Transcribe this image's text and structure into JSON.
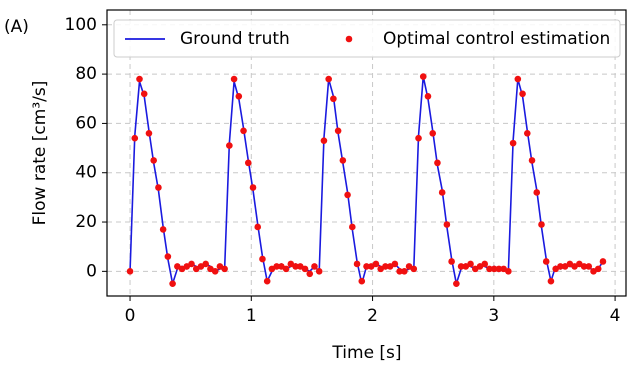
{
  "chart_data": {
    "type": "line",
    "panel_label": "(A)",
    "x_label": "Time [s]",
    "y_label": "Flow rate [cm³/s]",
    "xlim": [
      -0.19,
      4.09
    ],
    "ylim": [
      -10,
      106
    ],
    "xticks": [
      0,
      1,
      2,
      3,
      4
    ],
    "yticks": [
      0,
      20,
      40,
      60,
      80,
      100
    ],
    "grid": true,
    "legend": "top",
    "x": [
      0,
      0.039,
      0.078,
      0.117,
      0.156,
      0.195,
      0.234,
      0.273,
      0.312,
      0.351,
      0.39,
      0.429,
      0.468,
      0.507,
      0.546,
      0.585,
      0.624,
      0.663,
      0.702,
      0.741,
      0.78,
      0.819,
      0.858,
      0.897,
      0.936,
      0.975,
      1.014,
      1.053,
      1.092,
      1.131,
      1.17,
      1.209,
      1.248,
      1.287,
      1.326,
      1.365,
      1.404,
      1.443,
      1.482,
      1.521,
      1.56,
      1.599,
      1.638,
      1.677,
      1.716,
      1.755,
      1.794,
      1.833,
      1.872,
      1.911,
      1.95,
      1.989,
      2.028,
      2.067,
      2.106,
      2.145,
      2.184,
      2.223,
      2.262,
      2.301,
      2.34,
      2.379,
      2.418,
      2.457,
      2.496,
      2.535,
      2.574,
      2.613,
      2.652,
      2.691,
      2.73,
      2.769,
      2.808,
      2.847,
      2.886,
      2.925,
      2.964,
      3.003,
      3.042,
      3.081,
      3.12,
      3.159,
      3.198,
      3.237,
      3.276,
      3.315,
      3.354,
      3.393,
      3.432,
      3.471,
      3.51,
      3.549,
      3.588,
      3.627,
      3.666,
      3.705,
      3.744,
      3.783,
      3.822,
      3.861,
      3.9
    ],
    "series": [
      {
        "name": "Ground truth",
        "color": "#1a1adf",
        "mode": "line",
        "values": [
          0,
          55,
          77,
          71,
          57,
          44,
          33,
          18,
          5,
          -5,
          1,
          2,
          1,
          3,
          2,
          1,
          3,
          2,
          0,
          1,
          1,
          52,
          77,
          70,
          58,
          45,
          33,
          19,
          6,
          -4,
          0,
          2,
          3,
          1,
          2,
          3,
          2,
          1,
          0,
          2,
          0,
          54,
          78,
          71,
          56,
          44,
          32,
          17,
          4,
          -5,
          2,
          1,
          3,
          2,
          1,
          2,
          3,
          1,
          0,
          1,
          1,
          55,
          79,
          70,
          57,
          43,
          33,
          18,
          5,
          -5,
          1,
          3,
          2,
          1,
          3,
          2,
          1,
          2,
          0,
          1,
          0,
          53,
          78,
          71,
          57,
          44,
          33,
          18,
          5,
          -4,
          2,
          1,
          3,
          2,
          2,
          3,
          1,
          2,
          0,
          1,
          4
        ]
      },
      {
        "name": "Optimal control estimation",
        "color": "#f01010",
        "mode": "markers",
        "values": [
          0,
          54,
          78,
          72,
          56,
          45,
          34,
          17,
          6,
          -5,
          2,
          1,
          2,
          3,
          1,
          2,
          3,
          1,
          0,
          2,
          1,
          51,
          78,
          71,
          57,
          44,
          34,
          18,
          5,
          -4,
          1,
          2,
          2,
          1,
          3,
          2,
          2,
          1,
          -1,
          2,
          0,
          53,
          78,
          70,
          57,
          45,
          31,
          18,
          3,
          -4,
          2,
          2,
          3,
          1,
          2,
          2,
          3,
          0,
          0,
          2,
          1,
          54,
          79,
          71,
          56,
          44,
          32,
          19,
          4,
          -5,
          2,
          2,
          3,
          1,
          2,
          3,
          1,
          1,
          1,
          1,
          0,
          52,
          78,
          72,
          56,
          45,
          32,
          19,
          4,
          -4,
          1,
          2,
          2,
          3,
          2,
          3,
          2,
          2,
          0,
          1,
          4
        ]
      }
    ]
  }
}
